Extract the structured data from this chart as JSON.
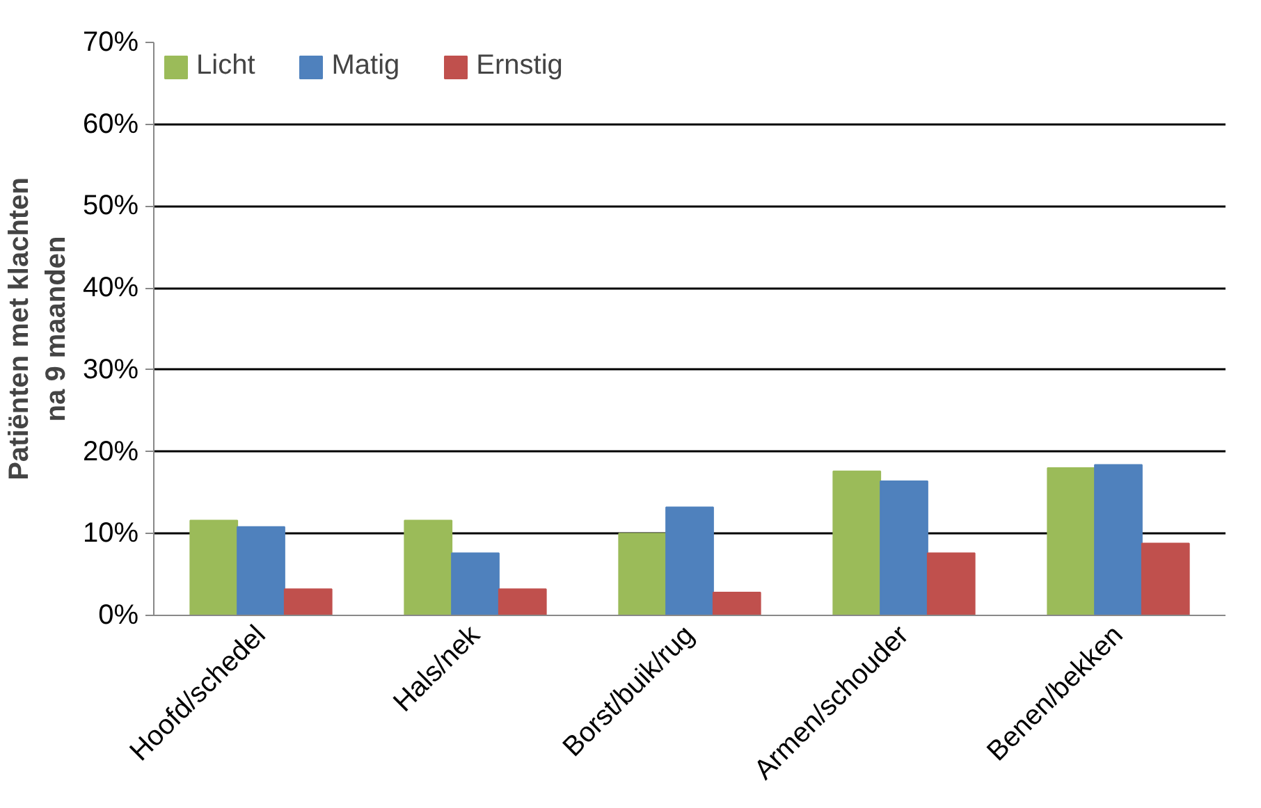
{
  "chart_data": {
    "type": "bar",
    "ylabel": "Patiënten met klachten\nna 9 maanden",
    "categories": [
      "Hoofd/schedel",
      "Hals/nek",
      "Borst/buik/rug",
      "Armen/schouder",
      "Benen/bekken"
    ],
    "series": [
      {
        "name": "Licht",
        "color": "#9bbb59",
        "values": [
          11.6,
          11.6,
          10.0,
          17.6,
          18.0
        ]
      },
      {
        "name": "Matig",
        "color": "#4f81bd",
        "values": [
          10.8,
          7.6,
          13.2,
          16.4,
          18.4
        ]
      },
      {
        "name": "Ernstig",
        "color": "#c0504d",
        "values": [
          3.2,
          3.2,
          2.8,
          7.6,
          8.8
        ]
      }
    ],
    "ylim": [
      0,
      70
    ],
    "yticks": [
      {
        "value": 0,
        "label": "0%"
      },
      {
        "value": 10,
        "label": "10%"
      },
      {
        "value": 20,
        "label": "20%"
      },
      {
        "value": 30,
        "label": "30%"
      },
      {
        "value": 40,
        "label": "40%"
      },
      {
        "value": 50,
        "label": "50%"
      },
      {
        "value": 60,
        "label": "60%"
      },
      {
        "value": 70,
        "label": "70%"
      }
    ],
    "grid": "y",
    "legend": "top left"
  }
}
